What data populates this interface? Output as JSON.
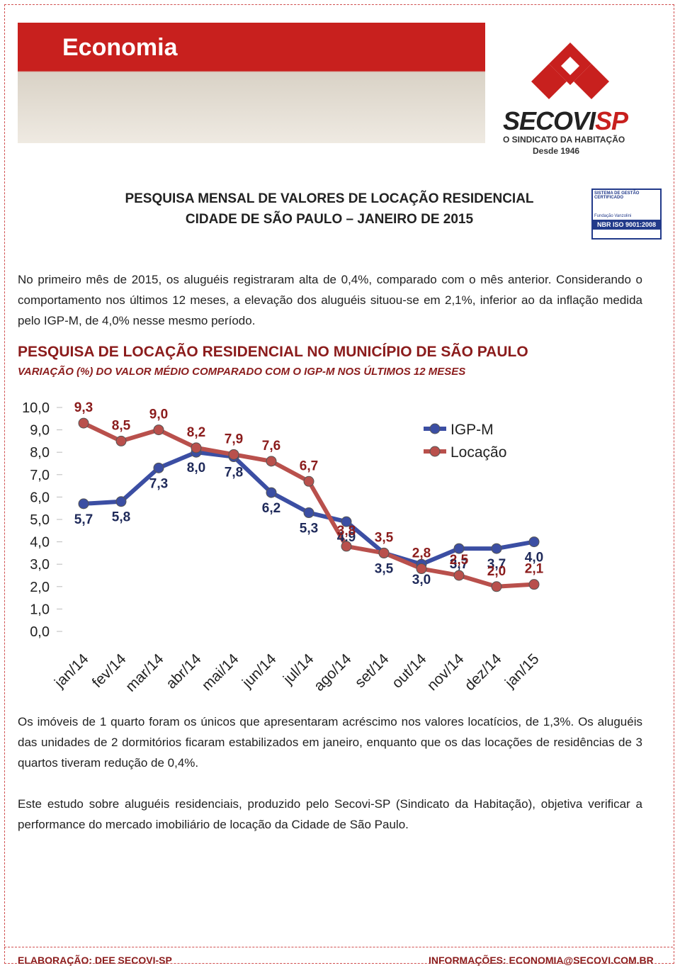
{
  "header": {
    "banner": "Economia",
    "logo": "SECOVI",
    "logo_suffix": "SP",
    "logo_tagline": "O SINDICATO DA HABITAÇÃO",
    "logo_since": "Desde 1946",
    "cert_top": "SISTEMA DE GESTÃO CERTIFICADO",
    "cert_org": "Fundação Vanzolini",
    "cert_iso": "NBR ISO 9001:2008"
  },
  "title": [
    "PESQUISA MENSAL DE VALORES DE LOCAÇÃO RESIDENCIAL",
    "CIDADE DE SÃO PAULO – JANEIRO DE 2015"
  ],
  "intro": "No primeiro mês de 2015, os aluguéis registraram alta de 0,4%, comparado com o mês anterior. Considerando o comportamento nos últimos 12 meses, a elevação dos aluguéis situou-se em 2,1%, inferior ao da inflação medida pelo IGP-M, de 4,0% nesse mesmo período.",
  "chart_data": {
    "type": "line",
    "title": "PESQUISA DE LOCAÇÃO RESIDENCIAL NO MUNICÍPIO DE SÃO PAULO",
    "subtitle": "VARIAÇÃO (%) DO VALOR MÉDIO COMPARADO COM O IGP-M NOS ÚLTIMOS 12 MESES",
    "categories": [
      "jan/14",
      "fev/14",
      "mar/14",
      "abr/14",
      "mai/14",
      "jun/14",
      "jul/14",
      "ago/14",
      "set/14",
      "out/14",
      "nov/14",
      "dez/14",
      "jan/15"
    ],
    "series": [
      {
        "name": "IGP-M",
        "color": "#3b4ea3",
        "values": [
          5.7,
          5.8,
          7.3,
          8.0,
          7.8,
          6.2,
          5.3,
          4.9,
          3.5,
          3.0,
          3.7,
          3.7,
          4.0
        ],
        "value_labels": [
          "5,7",
          "5,8",
          "7,3",
          "8,0",
          "7,8",
          "6,2",
          "5,3",
          "4,9",
          "3,5",
          "3,0",
          "3,7",
          "3,7",
          "4,0"
        ]
      },
      {
        "name": "Locação",
        "color": "#b9504c",
        "values": [
          9.3,
          8.5,
          9.0,
          8.2,
          7.9,
          7.6,
          6.7,
          3.8,
          3.5,
          2.8,
          2.5,
          2.0,
          2.1
        ],
        "value_labels": [
          "9,3",
          "8,5",
          "9,0",
          "8,2",
          "7,9",
          "7,6",
          "6,7",
          "3,8",
          "3,5",
          "2,8",
          "2,5",
          "2,0",
          "2,1"
        ]
      }
    ],
    "ylim": [
      0,
      10
    ],
    "yticks": [
      {
        "value": 0,
        "label": "0,0"
      },
      {
        "value": 1,
        "label": "1,0"
      },
      {
        "value": 2,
        "label": "2,0"
      },
      {
        "value": 3,
        "label": "3,0"
      },
      {
        "value": 4,
        "label": "4,0"
      },
      {
        "value": 5,
        "label": "5,0"
      },
      {
        "value": 6,
        "label": "6,0"
      },
      {
        "value": 7,
        "label": "7,0"
      },
      {
        "value": 8,
        "label": "8,0"
      },
      {
        "value": 9,
        "label": "9,0"
      },
      {
        "value": 10,
        "label": "10,0"
      }
    ],
    "legend": "right"
  },
  "paragraphs": [
    "Os imóveis de 1 quarto foram os únicos que apresentaram acréscimo nos valores locatícios, de 1,3%. Os aluguéis das unidades de 2 dormitórios ficaram estabilizados em janeiro, enquanto que os das locações de residências de 3 quartos tiveram redução de 0,4%.",
    "Este estudo sobre aluguéis residenciais, produzido pelo Secovi-SP (Sindicato da Habitação), objetiva verificar a performance do mercado imobiliário de locação da Cidade de São Paulo."
  ],
  "footer": {
    "left": "ELABORAÇÃO: DEE SECOVI-SP",
    "right": "INFORMAÇÕES: ECONOMIA@SECOVI.COM.BR"
  }
}
